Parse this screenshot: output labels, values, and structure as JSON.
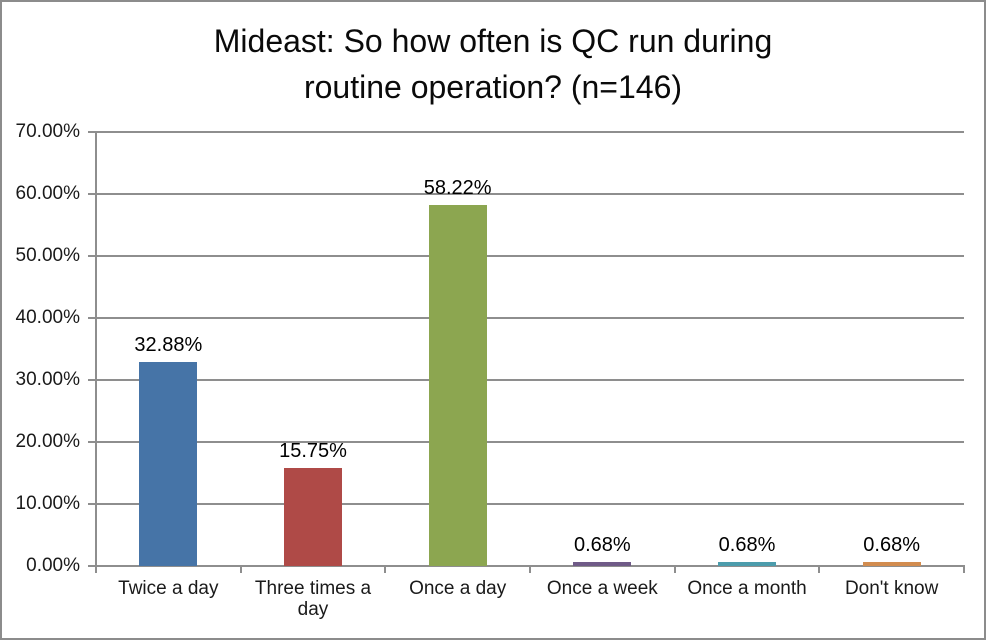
{
  "window": {
    "background": "#ffffff",
    "frame_border_color": "#8c8c8c"
  },
  "chart_data": {
    "type": "bar",
    "title": "Mideast: So how often is QC run during routine operation? (n=146)",
    "title_lines": [
      "Mideast: So how often is QC run during",
      "routine operation? (n=146)"
    ],
    "categories": [
      "Twice a day",
      "Three times a day",
      "Once a day",
      "Once a week",
      "Once a month",
      "Don't know"
    ],
    "values": [
      32.88,
      15.75,
      58.22,
      0.68,
      0.68,
      0.68
    ],
    "data_labels": [
      "32.88%",
      "15.75%",
      "58.22%",
      "0.68%",
      "0.68%",
      "0.68%"
    ],
    "bar_colors": [
      "#4674a7",
      "#af4a47",
      "#8ca650",
      "#6f5a87",
      "#4c9cac",
      "#d28c4f"
    ],
    "y_axis": {
      "min": 0,
      "max": 70,
      "step": 10,
      "tick_labels": [
        "0.00%",
        "10.00%",
        "20.00%",
        "30.00%",
        "40.00%",
        "50.00%",
        "60.00%",
        "70.00%"
      ]
    },
    "xlabel": "",
    "ylabel": "",
    "grid": true,
    "legend": false,
    "gridline_color": "#8e8e8e",
    "axis_color": "#8e8e8e",
    "label_text_color": "#1a1a1a",
    "data_label_color": "#000000"
  }
}
